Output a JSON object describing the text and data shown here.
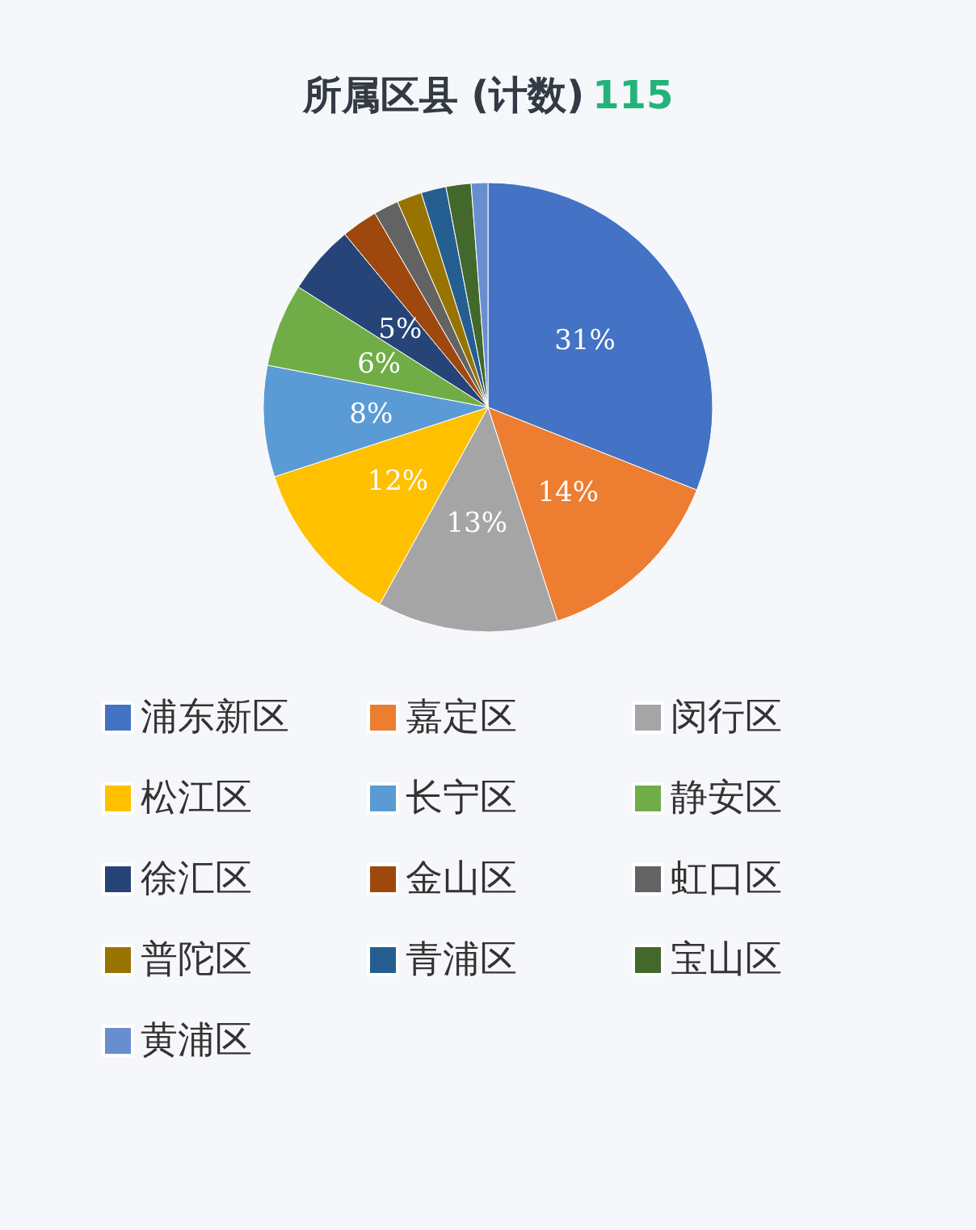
{
  "chart_data": {
    "type": "pie",
    "title": "所属区县 (计数)",
    "subtitle": "115",
    "categories": [
      "浦东新区",
      "嘉定区",
      "闵行区",
      "松江区",
      "长宁区",
      "静安区",
      "徐汇区",
      "金山区",
      "虹口区",
      "普陀区",
      "青浦区",
      "宝山区",
      "黄浦区"
    ],
    "values": [
      31,
      14,
      13,
      12,
      8,
      6,
      5,
      2.6,
      1.8,
      1.8,
      1.8,
      1.8,
      1.2
    ],
    "value_labels": [
      "31%",
      "14%",
      "13%",
      "12%",
      "8%",
      "6%",
      "5%",
      null,
      null,
      null,
      null,
      null,
      null
    ],
    "colors": [
      "#4472c4",
      "#ed7d31",
      "#a5a5a5",
      "#ffc000",
      "#5b9bd5",
      "#70ad47",
      "#264478",
      "#9e480e",
      "#636363",
      "#997300",
      "#255e91",
      "#43682b",
      "#698ed0"
    ],
    "legend": "bottom"
  }
}
